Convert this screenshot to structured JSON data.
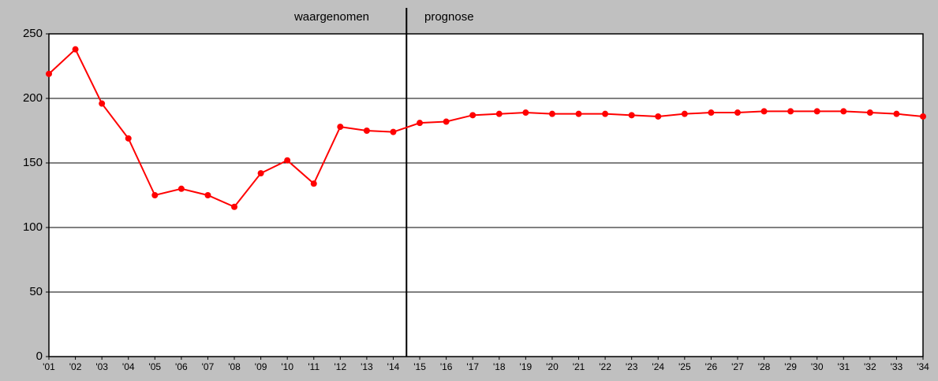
{
  "chart_data": {
    "type": "line",
    "annotations": [
      "waargenomen",
      "prognose"
    ],
    "categories": [
      "'01",
      "'02",
      "'03",
      "'04",
      "'05",
      "'06",
      "'07",
      "'08",
      "'09",
      "'10",
      "'11",
      "'12",
      "'13",
      "'14",
      "'15",
      "'16",
      "'17",
      "'18",
      "'19",
      "'20",
      "'21",
      "'22",
      "'23",
      "'24",
      "'25",
      "'26",
      "'27",
      "'28",
      "'29",
      "'30",
      "'31",
      "'32",
      "'33",
      "'34"
    ],
    "values": [
      219,
      238,
      196,
      169,
      125,
      130,
      125,
      116,
      142,
      152,
      134,
      178,
      175,
      174,
      181,
      182,
      187,
      188,
      189,
      188,
      188,
      188,
      187,
      186,
      188,
      189,
      189,
      190,
      190,
      190,
      190,
      189,
      188,
      186
    ],
    "color": "#ff0000",
    "ylim": [
      0,
      250
    ],
    "yticks": [
      0,
      50,
      100,
      150,
      200,
      250
    ],
    "grid": true
  }
}
